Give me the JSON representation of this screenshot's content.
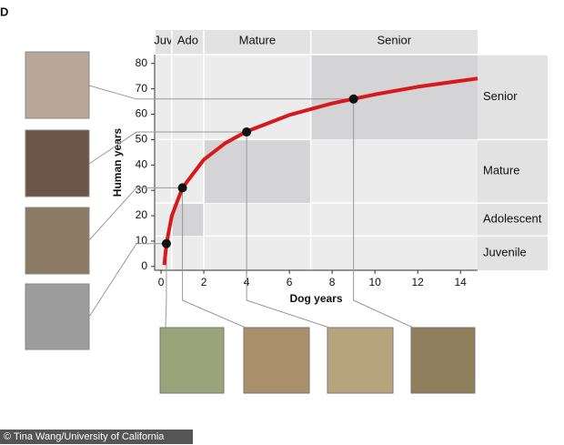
{
  "panel_letter": "D",
  "credit": "© Tina Wang/University of California",
  "chart_data": {
    "type": "line",
    "xlabel": "Dog years",
    "ylabel": "Human years",
    "xlim": [
      -0.3,
      14.8
    ],
    "ylim": [
      -1.5,
      83.5
    ],
    "xticks": [
      0,
      2,
      4,
      6,
      8,
      10,
      12,
      14
    ],
    "yticks": [
      0,
      10,
      20,
      30,
      40,
      50,
      60,
      70,
      80
    ],
    "stages": [
      {
        "top": "Juv",
        "side": "Juvenile",
        "x": [
          -0.3,
          0.5
        ],
        "y": [
          -1.5,
          12
        ],
        "shaded": false
      },
      {
        "top": "Ado",
        "side": "Adolescent",
        "x": [
          0.5,
          2
        ],
        "y": [
          12,
          25
        ],
        "shaded": true
      },
      {
        "top": "Mature",
        "side": "Mature",
        "x": [
          2,
          7
        ],
        "y": [
          25,
          50
        ],
        "shaded": true
      },
      {
        "top": "Senior",
        "side": "Senior",
        "x": [
          7,
          14.8
        ],
        "y": [
          50,
          83.5
        ],
        "shaded": true
      }
    ],
    "series": [
      {
        "color": "#d7191c",
        "x": [
          0.15,
          0.25,
          0.5,
          1,
          2,
          3,
          4,
          6,
          8,
          10,
          12,
          14.8
        ],
        "values": [
          0.6,
          8.8,
          19.9,
          31,
          42.1,
          48.6,
          53.2,
          59.7,
          64.3,
          67.8,
          70.8,
          74.1
        ]
      },
      {
        "color": "#111111",
        "x": [
          0.25,
          1,
          4,
          9
        ],
        "values": [
          9,
          31,
          53,
          66
        ],
        "markers": true
      }
    ]
  }
}
